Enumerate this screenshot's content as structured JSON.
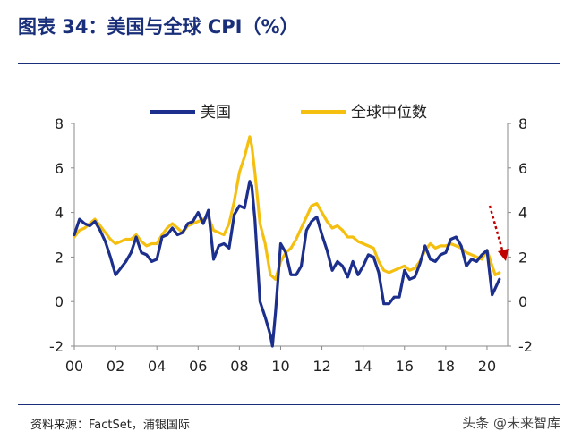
{
  "header": {
    "title": "图表 34：美国与全球 CPI（%）"
  },
  "footer": {
    "source": "资料来源：FactSet，浦银国际",
    "watermark": "头条 @未来智库"
  },
  "chart_data": {
    "type": "line",
    "title": "美国与全球 CPI（%）",
    "xlabel": "",
    "ylabel": "",
    "x_tick_labels": [
      "00",
      "02",
      "04",
      "06",
      "08",
      "10",
      "12",
      "14",
      "16",
      "18",
      "20"
    ],
    "x_ticks": [
      2000,
      2002,
      2004,
      2006,
      2008,
      2010,
      2012,
      2014,
      2016,
      2018,
      2020
    ],
    "xlim": [
      2000,
      2021
    ],
    "ylim": [
      -2,
      8
    ],
    "y_ticks": [
      -2,
      0,
      2,
      4,
      6,
      8
    ],
    "legend": {
      "position": "top-center"
    },
    "grid": false,
    "annotation": "red dotted downward arrow near 2020 on right axis",
    "series": [
      {
        "name": "美国",
        "color": "#1c2f8c",
        "x": [
          2000.0,
          2000.25,
          2000.5,
          2000.75,
          2001.0,
          2001.25,
          2001.5,
          2001.75,
          2002.0,
          2002.25,
          2002.5,
          2002.75,
          2003.0,
          2003.25,
          2003.5,
          2003.75,
          2004.0,
          2004.25,
          2004.5,
          2004.75,
          2005.0,
          2005.25,
          2005.5,
          2005.75,
          2006.0,
          2006.25,
          2006.5,
          2006.75,
          2007.0,
          2007.25,
          2007.5,
          2007.75,
          2008.0,
          2008.25,
          2008.5,
          2008.6,
          2008.75,
          2009.0,
          2009.25,
          2009.5,
          2009.6,
          2009.75,
          2010.0,
          2010.25,
          2010.5,
          2010.75,
          2011.0,
          2011.25,
          2011.5,
          2011.75,
          2012.0,
          2012.25,
          2012.5,
          2012.75,
          2013.0,
          2013.25,
          2013.5,
          2013.75,
          2014.0,
          2014.25,
          2014.5,
          2014.75,
          2015.0,
          2015.25,
          2015.5,
          2015.75,
          2016.0,
          2016.25,
          2016.5,
          2016.75,
          2017.0,
          2017.25,
          2017.5,
          2017.75,
          2018.0,
          2018.25,
          2018.5,
          2018.75,
          2019.0,
          2019.25,
          2019.5,
          2019.75,
          2020.0,
          2020.25,
          2020.4,
          2020.6
        ],
        "values": [
          3.0,
          3.7,
          3.5,
          3.4,
          3.6,
          3.2,
          2.7,
          2.0,
          1.2,
          1.5,
          1.8,
          2.2,
          2.9,
          2.2,
          2.1,
          1.8,
          1.9,
          2.9,
          3.0,
          3.3,
          3.0,
          3.1,
          3.5,
          3.6,
          4.0,
          3.5,
          4.1,
          1.9,
          2.5,
          2.6,
          2.4,
          3.9,
          4.3,
          4.2,
          5.4,
          5.2,
          3.7,
          0.0,
          -0.7,
          -1.5,
          -2.0,
          -0.5,
          2.6,
          2.2,
          1.2,
          1.2,
          1.6,
          3.2,
          3.6,
          3.8,
          3.0,
          2.3,
          1.4,
          1.8,
          1.6,
          1.1,
          1.8,
          1.2,
          1.6,
          2.1,
          2.0,
          1.3,
          -0.1,
          -0.1,
          0.2,
          0.2,
          1.4,
          1.0,
          1.1,
          1.7,
          2.5,
          1.9,
          1.8,
          2.1,
          2.2,
          2.8,
          2.9,
          2.5,
          1.6,
          1.9,
          1.8,
          2.1,
          2.3,
          0.3,
          0.6,
          1.0
        ]
      },
      {
        "name": "全球中位数",
        "color": "#f5bf10",
        "x": [
          2000.0,
          2000.25,
          2000.5,
          2000.75,
          2001.0,
          2001.25,
          2001.5,
          2001.75,
          2002.0,
          2002.25,
          2002.5,
          2002.75,
          2003.0,
          2003.25,
          2003.5,
          2003.75,
          2004.0,
          2004.25,
          2004.5,
          2004.75,
          2005.0,
          2005.25,
          2005.5,
          2005.75,
          2006.0,
          2006.25,
          2006.5,
          2006.75,
          2007.0,
          2007.25,
          2007.5,
          2007.75,
          2008.0,
          2008.25,
          2008.5,
          2008.6,
          2008.75,
          2009.0,
          2009.25,
          2009.5,
          2009.75,
          2010.0,
          2010.25,
          2010.5,
          2010.75,
          2011.0,
          2011.25,
          2011.5,
          2011.75,
          2012.0,
          2012.25,
          2012.5,
          2012.75,
          2013.0,
          2013.25,
          2013.5,
          2013.75,
          2014.0,
          2014.25,
          2014.5,
          2014.75,
          2015.0,
          2015.25,
          2015.5,
          2015.75,
          2016.0,
          2016.25,
          2016.5,
          2016.75,
          2017.0,
          2017.25,
          2017.5,
          2017.75,
          2018.0,
          2018.25,
          2018.5,
          2018.75,
          2019.0,
          2019.25,
          2019.5,
          2019.75,
          2020.0,
          2020.25,
          2020.4,
          2020.6
        ],
        "values": [
          2.9,
          3.2,
          3.3,
          3.5,
          3.7,
          3.4,
          3.1,
          2.8,
          2.6,
          2.7,
          2.8,
          2.8,
          3.0,
          2.7,
          2.5,
          2.6,
          2.6,
          3.0,
          3.3,
          3.5,
          3.3,
          3.1,
          3.4,
          3.5,
          3.6,
          3.7,
          3.8,
          3.2,
          3.1,
          3.0,
          3.5,
          4.5,
          5.8,
          6.5,
          7.4,
          7.0,
          5.8,
          3.5,
          2.6,
          1.2,
          1.0,
          1.8,
          2.2,
          2.4,
          2.8,
          3.3,
          3.8,
          4.3,
          4.4,
          4.0,
          3.6,
          3.3,
          3.4,
          3.2,
          2.9,
          2.9,
          2.7,
          2.6,
          2.5,
          2.4,
          1.8,
          1.4,
          1.3,
          1.4,
          1.5,
          1.6,
          1.4,
          1.5,
          1.8,
          2.3,
          2.6,
          2.4,
          2.5,
          2.5,
          2.6,
          2.5,
          2.4,
          2.2,
          2.1,
          2.0,
          1.9,
          2.3,
          1.6,
          1.2,
          1.3
        ]
      }
    ]
  }
}
